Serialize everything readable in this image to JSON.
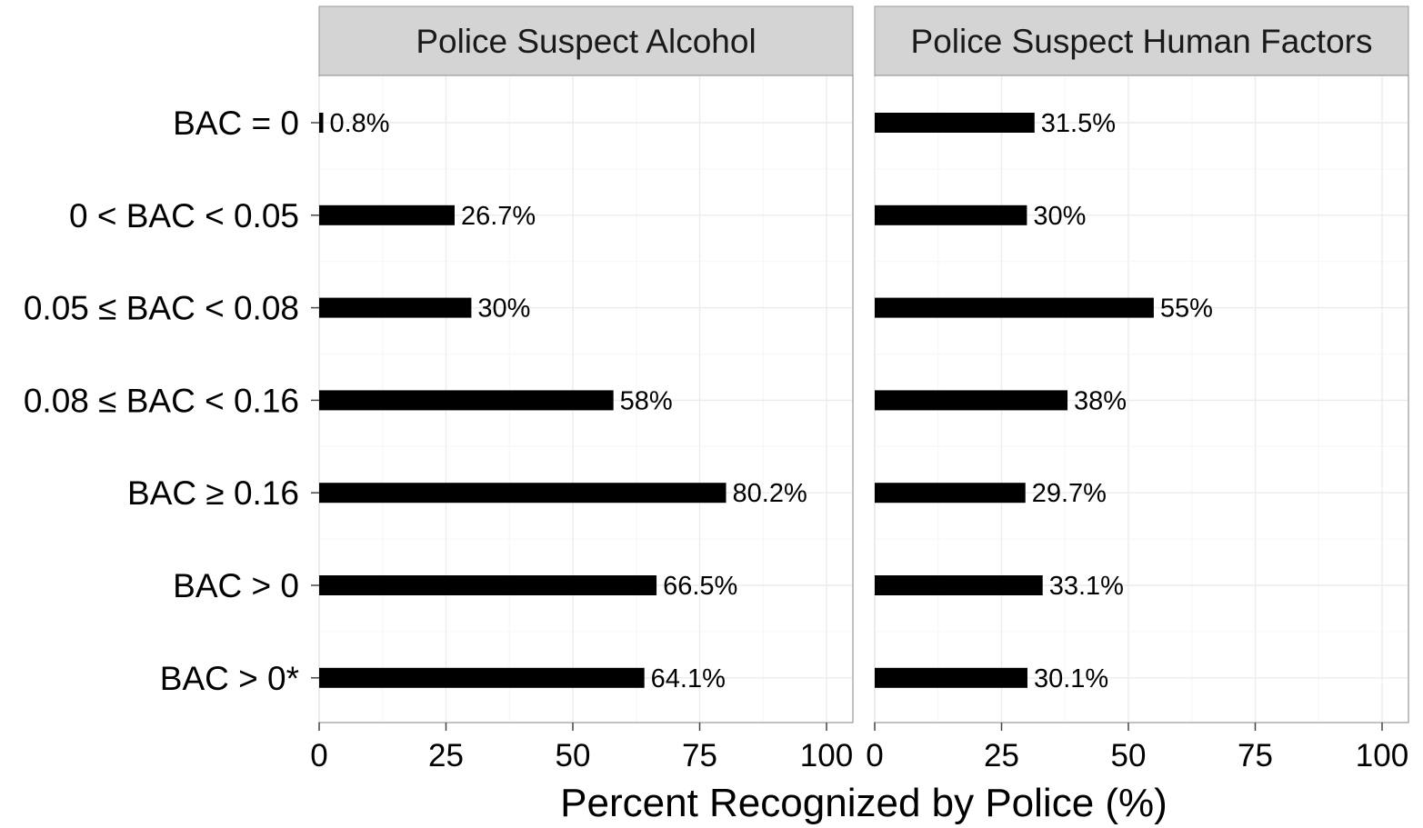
{
  "chart_data": {
    "type": "bar",
    "orientation": "horizontal",
    "xlabel": "Percent Recognized by Police (%)",
    "xlim": [
      0,
      100
    ],
    "xticks": [
      0,
      25,
      50,
      75,
      100
    ],
    "grid": true,
    "categories": [
      "BAC = 0",
      "0 < BAC < 0.05",
      "0.05 ≤ BAC < 0.08",
      "0.08 ≤ BAC < 0.16",
      "BAC ≥ 0.16",
      "BAC > 0",
      "BAC > 0*"
    ],
    "panels": [
      {
        "title": "Police Suspect Alcohol",
        "values": [
          0.8,
          26.7,
          30,
          58,
          80.2,
          66.5,
          64.1
        ],
        "labels": [
          "0.8%",
          "26.7%",
          "30%",
          "58%",
          "80.2%",
          "66.5%",
          "64.1%"
        ]
      },
      {
        "title": "Police Suspect Human Factors",
        "values": [
          31.5,
          30,
          55,
          38,
          29.7,
          33.1,
          30.1
        ],
        "labels": [
          "31.5%",
          "30%",
          "55%",
          "38%",
          "29.7%",
          "33.1%",
          "30.1%"
        ]
      }
    ],
    "colors": {
      "bar": "#000000",
      "strip": "#d4d4d4"
    }
  }
}
